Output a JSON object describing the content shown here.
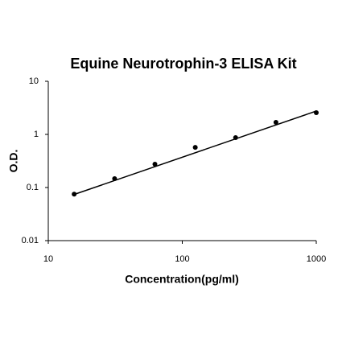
{
  "chart_data": {
    "type": "scatter",
    "title": "Equine Neurotrophin-3 ELISA Kit",
    "x_label": "Concentration(pg/ml)",
    "y_label": "O.D.",
    "x": [
      15.6,
      31.25,
      62.5,
      125,
      250,
      500,
      1000
    ],
    "values": [
      0.075,
      0.147,
      0.275,
      0.57,
      0.87,
      1.69,
      2.57
    ],
    "color": "#000000",
    "fit": {
      "x": [
        15.6,
        1000
      ],
      "values": [
        0.074,
        2.75
      ],
      "color": "#000000"
    },
    "xscale": "log",
    "yscale": "log",
    "xlim": [
      10,
      1000
    ],
    "ylim": [
      0.01,
      10
    ],
    "xticks": [
      10,
      100,
      1000
    ],
    "yticks": [
      0.01,
      0.1,
      1,
      10
    ]
  }
}
